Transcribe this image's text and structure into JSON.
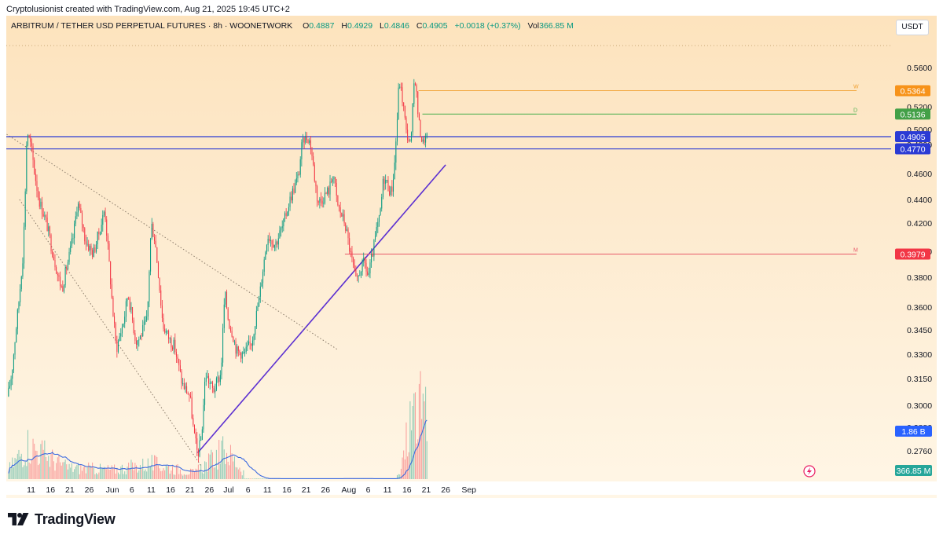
{
  "credit": "Cryptolusionist created with TradingView.com, Aug 21, 2025 19:45 UTC+2",
  "header": {
    "symbol": "ARBITRUM / TETHER USD PERPETUAL FUTURES · 8h · WOONETWORK",
    "open_label": "O",
    "open": "0.4887",
    "high_label": "H",
    "high": "0.4929",
    "low_label": "L",
    "low": "0.4846",
    "close_label": "C",
    "close": "0.4905",
    "change": "+0.0018 (+0.37%)",
    "vol_label": "Vol",
    "vol": "366.85 M"
  },
  "currency_button": "USDT",
  "footer": {
    "brand": "TradingView"
  },
  "colors": {
    "up": "#089981",
    "down": "#f23645",
    "trendline": "#5b2fd1",
    "hline": "#2b3bd4",
    "ma": "#3b6ae0",
    "orange": "#f7931a",
    "green_tag": "#43a047",
    "red_tag": "#f23645"
  },
  "chart_data": {
    "type": "candlestick",
    "timeframe": "8h",
    "y_ticks": [
      "0.5600",
      "0.5200",
      "0.5000",
      "0.4800",
      "0.4600",
      "0.4400",
      "0.4200",
      "0.4000",
      "0.3800",
      "0.3600",
      "0.3450",
      "0.3300",
      "0.3150",
      "0.3000",
      "0.2880",
      "0.2760"
    ],
    "y_tick_values": [
      0.56,
      0.52,
      0.5,
      0.48,
      0.46,
      0.44,
      0.42,
      0.4,
      0.38,
      0.36,
      0.345,
      0.33,
      0.315,
      0.3,
      0.288,
      0.276
    ],
    "x_ticks": [
      "11",
      "16",
      "21",
      "26",
      "Jun",
      "6",
      "11",
      "16",
      "21",
      "26",
      "Jul",
      "6",
      "11",
      "16",
      "21",
      "26",
      "Aug",
      "6",
      "11",
      "16",
      "21",
      "26",
      "Sep"
    ],
    "x_tick_days": [
      "2025-05-11",
      "2025-05-16",
      "2025-05-21",
      "2025-05-26",
      "2025-06-01",
      "2025-06-06",
      "2025-06-11",
      "2025-06-16",
      "2025-06-21",
      "2025-06-26",
      "2025-07-01",
      "2025-07-06",
      "2025-07-11",
      "2025-07-16",
      "2025-07-21",
      "2025-07-26",
      "2025-08-01",
      "2025-08-06",
      "2025-08-11",
      "2025-08-16",
      "2025-08-21",
      "2025-08-26",
      "2025-09-01"
    ],
    "price_tags": [
      {
        "label": "0.5364",
        "value": 0.5364,
        "kind": "orange",
        "level_text": "W"
      },
      {
        "label": "0.5136",
        "value": 0.5136,
        "kind": "green",
        "level_text": "D"
      },
      {
        "label": "0.4905",
        "value": 0.4905,
        "kind": "blue",
        "level_text": ""
      },
      {
        "label": "0.4770",
        "value": 0.477,
        "kind": "blue",
        "level_text": ""
      },
      {
        "label": "0.3979",
        "value": 0.3979,
        "kind": "red",
        "level_text": "M"
      }
    ],
    "volume_tags": [
      {
        "label": "1.86 B",
        "kind": "blue"
      },
      {
        "label": "366.85 M",
        "kind": "teal"
      }
    ],
    "horizontal_lines": [
      0.4905,
      0.477
    ],
    "trendlines": [
      {
        "from": [
          "2025-06-23",
          0.275
        ],
        "to": [
          "2025-08-26",
          0.466
        ],
        "style": "solid"
      },
      {
        "from": [
          "2025-05-04",
          0.496
        ],
        "to": [
          "2025-07-29",
          0.333
        ],
        "style": "dotted"
      },
      {
        "from": [
          "2025-05-08",
          0.44
        ],
        "to": [
          "2025-06-24",
          0.268
        ],
        "style": "dotted"
      }
    ],
    "anchors": [
      [
        "2025-05-05",
        0.305
      ],
      [
        "2025-05-06",
        0.318
      ],
      [
        "2025-05-08",
        0.368
      ],
      [
        "2025-05-09",
        0.4
      ],
      [
        "2025-05-10",
        0.497
      ],
      [
        "2025-05-13",
        0.44
      ],
      [
        "2025-05-15",
        0.42
      ],
      [
        "2025-05-18",
        0.38
      ],
      [
        "2025-05-19",
        0.372
      ],
      [
        "2025-05-22",
        0.412
      ],
      [
        "2025-05-23",
        0.438
      ],
      [
        "2025-05-25",
        0.408
      ],
      [
        "2025-05-27",
        0.398
      ],
      [
        "2025-05-29",
        0.418
      ],
      [
        "2025-05-30",
        0.432
      ],
      [
        "2025-06-01",
        0.36
      ],
      [
        "2025-06-02",
        0.333
      ],
      [
        "2025-06-04",
        0.352
      ],
      [
        "2025-06-05",
        0.37
      ],
      [
        "2025-06-07",
        0.338
      ],
      [
        "2025-06-08",
        0.34
      ],
      [
        "2025-06-10",
        0.352
      ],
      [
        "2025-06-11",
        0.42
      ],
      [
        "2025-06-12",
        0.408
      ],
      [
        "2025-06-14",
        0.348
      ],
      [
        "2025-06-16",
        0.338
      ],
      [
        "2025-06-17",
        0.335
      ],
      [
        "2025-06-19",
        0.312
      ],
      [
        "2025-06-21",
        0.305
      ],
      [
        "2025-06-22",
        0.285
      ],
      [
        "2025-06-23",
        0.274
      ],
      [
        "2025-06-24",
        0.283
      ],
      [
        "2025-06-25",
        0.318
      ],
      [
        "2025-06-27",
        0.308
      ],
      [
        "2025-06-29",
        0.318
      ],
      [
        "2025-06-30",
        0.37
      ],
      [
        "2025-07-01",
        0.35
      ],
      [
        "2025-07-02",
        0.343
      ],
      [
        "2025-07-03",
        0.332
      ],
      [
        "2025-07-05",
        0.33
      ],
      [
        "2025-07-07",
        0.338
      ],
      [
        "2025-07-09",
        0.368
      ],
      [
        "2025-07-11",
        0.412
      ],
      [
        "2025-07-13",
        0.405
      ],
      [
        "2025-07-15",
        0.418
      ],
      [
        "2025-07-17",
        0.442
      ],
      [
        "2025-07-19",
        0.458
      ],
      [
        "2025-07-20",
        0.483
      ],
      [
        "2025-07-21",
        0.49
      ],
      [
        "2025-07-22",
        0.484
      ],
      [
        "2025-07-24",
        0.438
      ],
      [
        "2025-07-25",
        0.44
      ],
      [
        "2025-07-27",
        0.448
      ],
      [
        "2025-07-28",
        0.462
      ],
      [
        "2025-07-29",
        0.436
      ],
      [
        "2025-07-31",
        0.42
      ],
      [
        "2025-08-02",
        0.39
      ],
      [
        "2025-08-03",
        0.375
      ],
      [
        "2025-08-04",
        0.386
      ],
      [
        "2025-08-05",
        0.392
      ],
      [
        "2025-08-06",
        0.38
      ],
      [
        "2025-08-08",
        0.412
      ],
      [
        "2025-08-09",
        0.425
      ],
      [
        "2025-08-10",
        0.458
      ],
      [
        "2025-08-12",
        0.445
      ],
      [
        "2025-08-13",
        0.472
      ],
      [
        "2025-08-14",
        0.548
      ],
      [
        "2025-08-15",
        0.524
      ],
      [
        "2025-08-16",
        0.492
      ],
      [
        "2025-08-17",
        0.48
      ],
      [
        "2025-08-18",
        0.556
      ],
      [
        "2025-08-19",
        0.508
      ],
      [
        "2025-08-20",
        0.482
      ],
      [
        "2025-08-21",
        0.4905
      ]
    ],
    "volume_anchors": [
      [
        "2025-05-05",
        0.12
      ],
      [
        "2025-05-10",
        0.45
      ],
      [
        "2025-05-20",
        0.15
      ],
      [
        "2025-06-01",
        0.12
      ],
      [
        "2025-06-11",
        0.2
      ],
      [
        "2025-06-22",
        0.08
      ],
      [
        "2025-06-30",
        0.38
      ],
      [
        "2025-07-05",
        0.08
      ],
      [
        "2025-08-14",
        0.05
      ],
      [
        "2025-08-17",
        0.8
      ],
      [
        "2025-08-19",
        0.95
      ],
      [
        "2025-08-21",
        0.7
      ]
    ]
  }
}
